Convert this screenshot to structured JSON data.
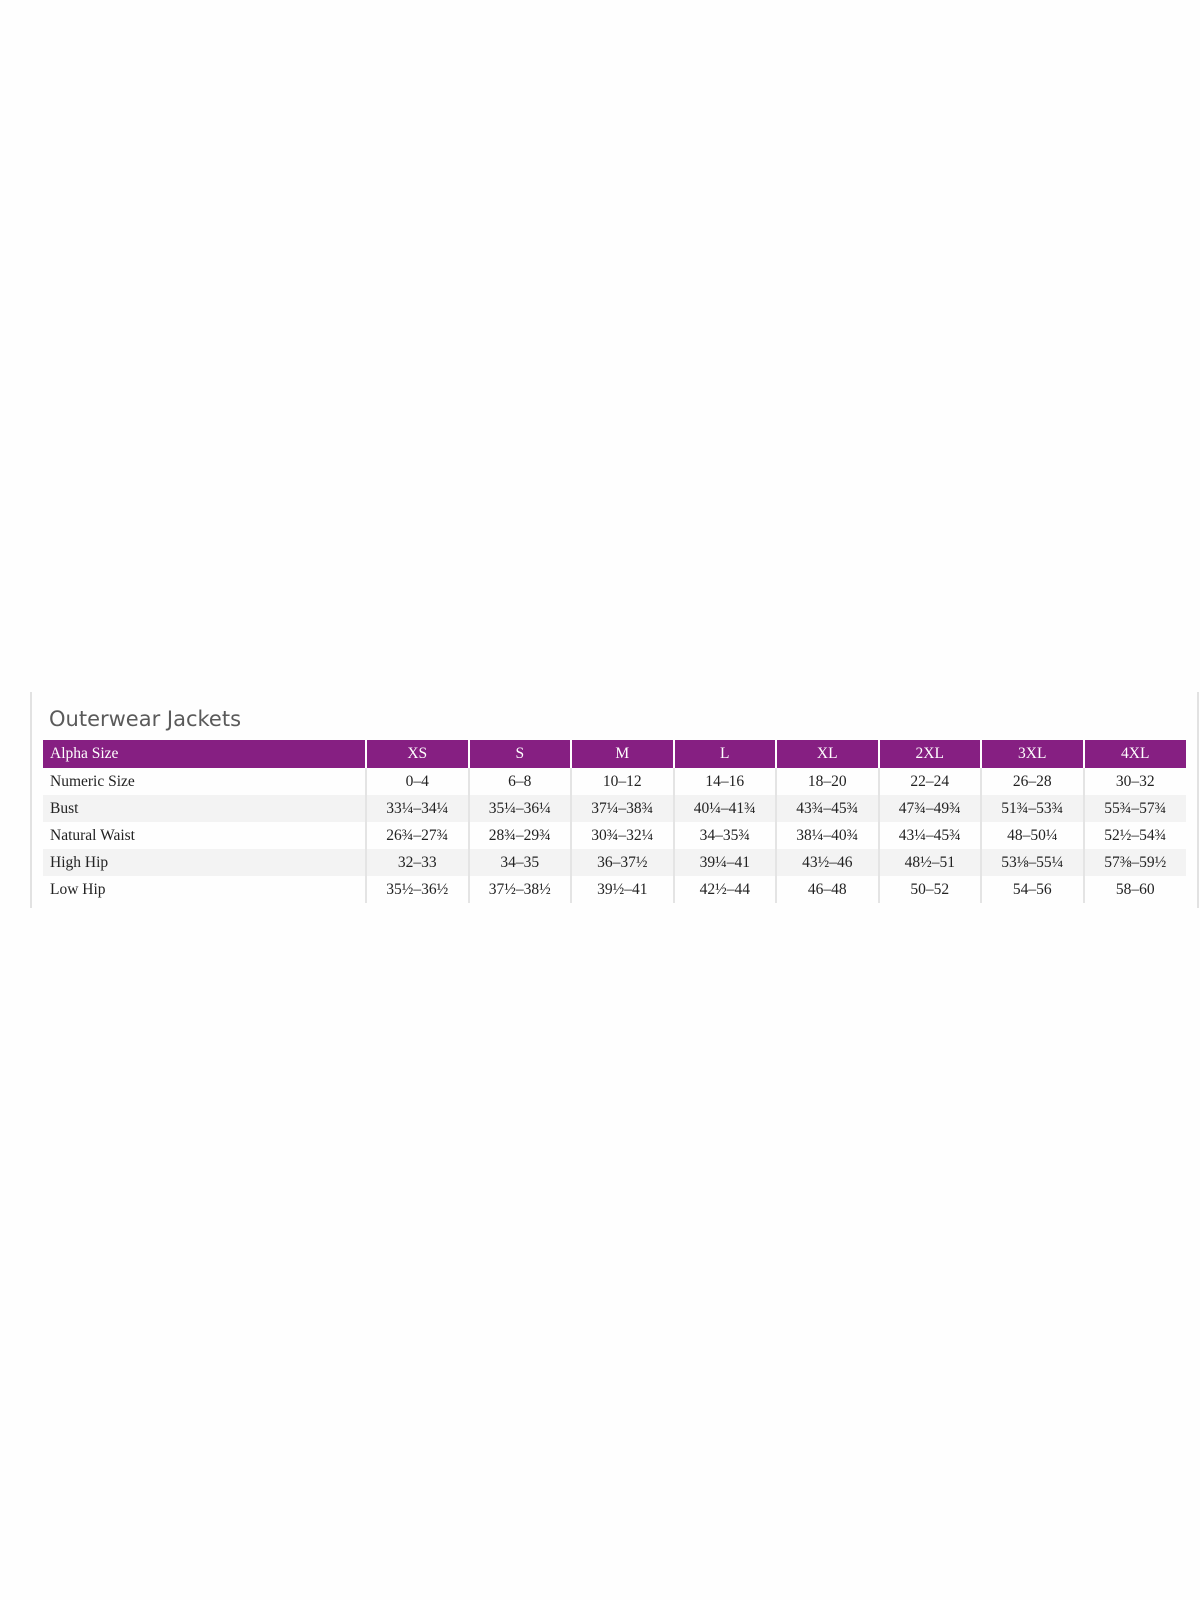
{
  "title": "Outerwear Jackets",
  "colors": {
    "header_bg": "#861f82",
    "header_text": "#ffffff",
    "stripe": "#f3f3f3"
  },
  "table": {
    "header": [
      "Alpha Size",
      "XS",
      "S",
      "M",
      "L",
      "XL",
      "2XL",
      "3XL",
      "4XL"
    ],
    "rows": [
      [
        "Numeric Size",
        "0–4",
        "6–8",
        "10–12",
        "14–16",
        "18–20",
        "22–24",
        "26–28",
        "30–32"
      ],
      [
        "Bust",
        "33¼–34¼",
        "35¼–36¼",
        "37¼–38¾",
        "40¼–41¾",
        "43¾–45¾",
        "47¾–49¾",
        "51¾–53¾",
        "55¾–57¾"
      ],
      [
        "Natural Waist",
        "26¾–27¾",
        "28¾–29¾",
        "30¾–32¼",
        "34–35¾",
        "38¼–40¾",
        "43¼–45¾",
        "48–50¼",
        "52½–54¾"
      ],
      [
        "High Hip",
        "32–33",
        "34–35",
        "36–37½",
        "39¼–41",
        "43½–46",
        "48½–51",
        "53⅛–55¼",
        "57⅜–59½"
      ],
      [
        "Low Hip",
        "35½–36½",
        "37½–38½",
        "39½–41",
        "42½–44",
        "46–48",
        "50–52",
        "54–56",
        "58–60"
      ]
    ]
  }
}
